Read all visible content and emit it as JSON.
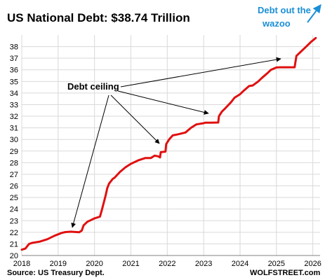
{
  "chart_data": {
    "type": "line",
    "title_prefix": "US National Debt: ",
    "title_value": "$38.74 Trillion",
    "source": "Source: US Treasury Dept.",
    "watermark": "WOLFSTREET.com",
    "xlim": [
      2018,
      2026.2
    ],
    "ylim": [
      20,
      39
    ],
    "x_ticks": [
      2018,
      2019,
      2020,
      2021,
      2022,
      2023,
      2024,
      2025,
      2026
    ],
    "y_ticks": [
      20,
      21,
      22,
      23,
      24,
      25,
      26,
      27,
      28,
      29,
      30,
      31,
      32,
      33,
      34,
      35,
      36,
      37,
      38
    ],
    "grid": true,
    "colors": {
      "line": "#e01010",
      "title_value": "#e01010",
      "annotation_arrow": "#1a8fd6",
      "grid": "#d9d9d9"
    },
    "series": [
      {
        "x": [
          2018.0,
          2018.1,
          2018.2,
          2018.3,
          2018.5,
          2018.7,
          2018.9,
          2019.1,
          2019.2,
          2019.35,
          2019.5,
          2019.58,
          2019.65,
          2019.7,
          2019.8,
          2020.0,
          2020.15,
          2020.2,
          2020.25,
          2020.3,
          2020.35,
          2020.4,
          2020.45,
          2020.5,
          2020.55,
          2020.7,
          2020.85,
          2021.0,
          2021.2,
          2021.4,
          2021.55,
          2021.65,
          2021.75,
          2021.8,
          2021.82,
          2021.95,
          2021.97,
          2022.05,
          2022.15,
          2022.3,
          2022.5,
          2022.65,
          2022.8,
          2023.0,
          2023.05,
          2023.2,
          2023.4,
          2023.42,
          2023.5,
          2023.6,
          2023.75,
          2023.85,
          2024.0,
          2024.1,
          2024.25,
          2024.35,
          2024.5,
          2024.6,
          2024.75,
          2024.85,
          2025.0,
          2025.1,
          2025.45,
          2025.5,
          2025.55,
          2025.65,
          2025.75,
          2025.85,
          2025.95,
          2026.08
        ],
        "y": [
          20.5,
          20.6,
          21.0,
          21.1,
          21.2,
          21.4,
          21.7,
          21.95,
          22.02,
          22.05,
          22.02,
          22.0,
          22.15,
          22.6,
          22.9,
          23.2,
          23.35,
          23.9,
          24.5,
          25.1,
          25.8,
          26.2,
          26.4,
          26.6,
          26.7,
          27.2,
          27.6,
          27.9,
          28.2,
          28.4,
          28.4,
          28.6,
          28.55,
          28.45,
          28.9,
          28.95,
          29.6,
          30.0,
          30.35,
          30.45,
          30.6,
          31.0,
          31.3,
          31.4,
          31.45,
          31.45,
          31.46,
          32.0,
          32.4,
          32.7,
          33.2,
          33.6,
          33.9,
          34.2,
          34.6,
          34.65,
          35.0,
          35.3,
          35.7,
          36.0,
          36.2,
          36.22,
          36.22,
          36.22,
          37.2,
          37.5,
          37.8,
          38.1,
          38.4,
          38.74
        ]
      }
    ],
    "annotations": [
      {
        "text": "Debt ceiling"
      },
      {
        "text_lines": [
          "Debt out the",
          "wazoo"
        ]
      }
    ]
  }
}
